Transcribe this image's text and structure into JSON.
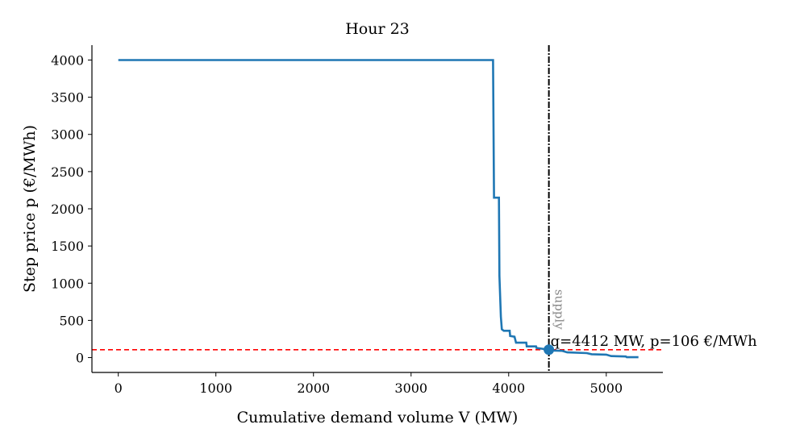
{
  "chart_data": {
    "type": "line",
    "title": "Hour 23",
    "xlabel": "Cumulative demand volume V (MW)",
    "ylabel": "Step price p (€/MWh)",
    "xlim": [
      -270,
      5580
    ],
    "ylim": [
      -200,
      4200
    ],
    "xticks": [
      0,
      1000,
      2000,
      3000,
      4000,
      5000
    ],
    "yticks": [
      0,
      500,
      1000,
      1500,
      2000,
      2500,
      3000,
      3500,
      4000
    ],
    "grid": false,
    "series": [
      {
        "name": "Demand step curve",
        "color": "#1f77b4",
        "points": [
          [
            0,
            4000
          ],
          [
            3840,
            4000
          ],
          [
            3850,
            2150
          ],
          [
            3900,
            2150
          ],
          [
            3905,
            1100
          ],
          [
            3920,
            550
          ],
          [
            3930,
            380
          ],
          [
            3950,
            360
          ],
          [
            4010,
            360
          ],
          [
            4015,
            290
          ],
          [
            4060,
            280
          ],
          [
            4075,
            200
          ],
          [
            4180,
            200
          ],
          [
            4185,
            150
          ],
          [
            4280,
            150
          ],
          [
            4285,
            130
          ],
          [
            4412,
            106
          ],
          [
            4450,
            95
          ],
          [
            4550,
            90
          ],
          [
            4600,
            70
          ],
          [
            4800,
            60
          ],
          [
            4850,
            45
          ],
          [
            5000,
            40
          ],
          [
            5050,
            20
          ],
          [
            5200,
            15
          ],
          [
            5210,
            5
          ],
          [
            5330,
            5
          ]
        ]
      }
    ],
    "vertical_line": {
      "x": 4412,
      "style": "dash-dot",
      "color": "#000000",
      "label": "supply"
    },
    "horizontal_line": {
      "y": 106,
      "style": "dashed",
      "color": "#ff0000"
    },
    "highlight_point": {
      "x": 4412,
      "y": 106,
      "color": "#1f77b4"
    },
    "annotation": {
      "text": "q=4412 MW, p=106 €/MWh",
      "x": 4412,
      "y": 106
    }
  }
}
